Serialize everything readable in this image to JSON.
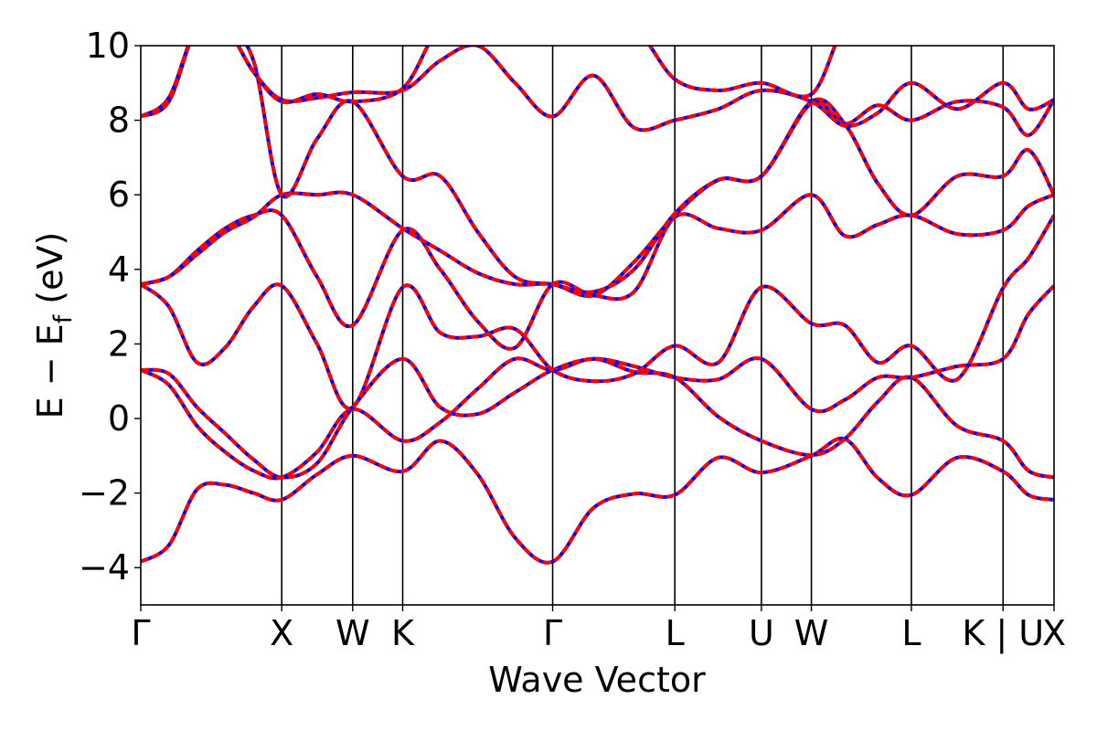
{
  "chart_data": {
    "type": "line",
    "title": "",
    "xlabel": "Wave Vector",
    "ylabel_main": "E − E",
    "ylabel_sub": "f",
    "ylabel_unit": " (eV)",
    "ylim": [
      -5,
      10
    ],
    "yticks": [
      -4,
      -2,
      0,
      2,
      4,
      6,
      8,
      10
    ],
    "ytick_labels": [
      "−4",
      "−2",
      "0",
      "2",
      "4",
      "6",
      "8",
      "10"
    ],
    "xlim": [
      0,
      3.745
    ],
    "kpoints": [
      {
        "label": "Γ",
        "x": 0.0
      },
      {
        "label": "X",
        "x": 0.578
      },
      {
        "label": "W",
        "x": 0.869
      },
      {
        "label": "K",
        "x": 1.074
      },
      {
        "label": "Γ",
        "x": 1.689
      },
      {
        "label": "L",
        "x": 2.19
      },
      {
        "label": "U",
        "x": 2.545
      },
      {
        "label": "W",
        "x": 2.75
      },
      {
        "label": "L",
        "x": 3.16
      },
      {
        "label": "K | U",
        "x": 3.536
      },
      {
        "label": "X",
        "x": 3.745
      }
    ],
    "series_style": [
      {
        "name": "",
        "color": "#ff0000",
        "dash": "solid"
      },
      {
        "name": "",
        "color": "#0000ff",
        "dash": "dashed"
      }
    ],
    "bands": [
      {
        "x": [
          0.0,
          0.115,
          0.231,
          0.346,
          0.462,
          0.578,
          0.723,
          0.869,
          1.074,
          1.228,
          1.382,
          1.535,
          1.689,
          1.856,
          2.023,
          2.19,
          2.368,
          2.545,
          2.75,
          2.887,
          3.023,
          3.16,
          3.348,
          3.536,
          3.64,
          3.745
        ],
        "y": [
          -3.84,
          -3.4,
          -1.9,
          -1.78,
          -2.0,
          -2.18,
          -1.5,
          -1.0,
          -1.42,
          -0.6,
          -1.5,
          -3.2,
          -3.84,
          -2.4,
          -2.02,
          -2.05,
          -1.05,
          -1.45,
          -1.0,
          -0.55,
          -1.6,
          -2.05,
          -1.05,
          -1.42,
          -2.05,
          -2.18
        ]
      },
      {
        "x": [
          0.0,
          0.115,
          0.231,
          0.346,
          0.462,
          0.578,
          0.723,
          0.869,
          1.074,
          1.228,
          1.382,
          1.535,
          1.689,
          1.856,
          2.023,
          2.19,
          2.368,
          2.545,
          2.75,
          2.887,
          3.023,
          3.16,
          3.348,
          3.536,
          3.64,
          3.745
        ],
        "y": [
          1.3,
          0.9,
          -0.2,
          -0.9,
          -1.4,
          -1.58,
          -0.9,
          0.25,
          -0.6,
          -0.1,
          0.8,
          1.6,
          1.3,
          1.6,
          1.25,
          1.1,
          0.05,
          -0.6,
          -0.98,
          -0.55,
          0.45,
          1.1,
          -0.2,
          -0.6,
          -1.4,
          -1.58
        ]
      },
      {
        "x": [
          0.0,
          0.115,
          0.231,
          0.346,
          0.462,
          0.578,
          0.723,
          0.869,
          1.074,
          1.228,
          1.382,
          1.535,
          1.689,
          1.856,
          2.023,
          2.19,
          2.368,
          2.545,
          2.75,
          2.887,
          3.023,
          3.16,
          3.348,
          3.536,
          3.64,
          3.745
        ],
        "y": [
          1.3,
          1.2,
          0.3,
          -0.4,
          -1.1,
          -1.58,
          -1.2,
          0.3,
          1.6,
          0.3,
          0.12,
          0.7,
          1.3,
          1.6,
          1.4,
          1.1,
          1.05,
          1.6,
          0.25,
          0.5,
          1.1,
          1.1,
          1.4,
          1.6,
          2.8,
          3.56
        ]
      },
      {
        "x": [
          0.0,
          0.115,
          0.231,
          0.346,
          0.462,
          0.578,
          0.723,
          0.869,
          1.074,
          1.228,
          1.382,
          1.535,
          1.689,
          1.856,
          2.023,
          2.19,
          2.368,
          2.545,
          2.75,
          2.887,
          3.023,
          3.16,
          3.348,
          3.536,
          3.64,
          3.745
        ],
        "y": [
          3.6,
          3.0,
          1.5,
          1.9,
          3.0,
          3.56,
          2.0,
          0.3,
          3.52,
          2.3,
          2.2,
          2.4,
          1.3,
          1.0,
          1.2,
          1.95,
          1.5,
          3.52,
          2.55,
          2.5,
          1.5,
          1.95,
          1.05,
          3.5,
          4.3,
          5.45
        ]
      },
      {
        "x": [
          0.0,
          0.115,
          0.231,
          0.346,
          0.462,
          0.578,
          0.723,
          0.869,
          1.074,
          1.228,
          1.382,
          1.535,
          1.689,
          1.856,
          2.023,
          2.19,
          2.368,
          2.545,
          2.75,
          2.887,
          3.023,
          3.16,
          3.348,
          3.536,
          3.64,
          3.745
        ],
        "y": [
          3.6,
          3.8,
          4.5,
          5.1,
          5.45,
          5.45,
          3.8,
          2.5,
          5.05,
          4.0,
          2.6,
          1.9,
          3.6,
          3.3,
          3.4,
          5.4,
          5.1,
          5.05,
          6.0,
          4.9,
          5.2,
          5.45,
          4.95,
          5.05,
          5.7,
          6.0
        ]
      },
      {
        "x": [
          0.0,
          0.115,
          0.231,
          0.346,
          0.462,
          0.578,
          0.723,
          0.869,
          1.074,
          1.228,
          1.382,
          1.535,
          1.689,
          1.856,
          2.023,
          2.19,
          2.368,
          2.545,
          2.75,
          2.887,
          3.023,
          3.16,
          3.348,
          3.536,
          3.64,
          3.745
        ],
        "y": [
          3.6,
          3.8,
          4.4,
          5.0,
          5.4,
          6.0,
          6.0,
          6.0,
          5.1,
          4.5,
          3.9,
          3.6,
          3.6,
          3.3,
          4.2,
          5.45,
          6.4,
          6.5,
          8.5,
          7.9,
          6.3,
          5.45,
          6.5,
          6.5,
          7.2,
          6.0
        ]
      },
      {
        "x": [
          0.0,
          0.115,
          0.231,
          0.346,
          0.462,
          0.578,
          0.723,
          0.869,
          1.074,
          1.228,
          1.382,
          1.535,
          1.689,
          1.856,
          2.023,
          2.19,
          2.368,
          2.545,
          2.75,
          2.887,
          3.023,
          3.16,
          3.348,
          3.536,
          3.64,
          3.745
        ],
        "y": [
          8.1,
          8.5,
          10.5,
          10.5,
          9.6,
          6.0,
          7.5,
          8.5,
          6.5,
          6.5,
          5.0,
          3.8,
          3.6,
          3.4,
          4.0,
          5.5,
          6.4,
          6.5,
          8.45,
          7.9,
          8.4,
          8.0,
          8.5,
          8.35,
          7.6,
          8.55
        ]
      },
      {
        "x": [
          0.0,
          0.115,
          0.231,
          0.346,
          0.462,
          0.578,
          0.723,
          0.869,
          1.074,
          1.228,
          1.382,
          1.535,
          1.689,
          1.856,
          2.023,
          2.19,
          2.368,
          2.545,
          2.75,
          2.887,
          3.023,
          3.16,
          3.348,
          3.536,
          3.64,
          3.745
        ],
        "y": [
          8.1,
          8.6,
          10.5,
          10.5,
          9.3,
          8.55,
          8.6,
          8.75,
          8.8,
          9.6,
          10.0,
          9.0,
          8.1,
          9.2,
          7.8,
          8.0,
          8.3,
          8.8,
          8.5,
          7.85,
          8.2,
          9.0,
          8.3,
          9.0,
          8.3,
          8.55
        ]
      },
      {
        "x": [
          0.0,
          0.115,
          0.231,
          0.346,
          0.462,
          0.578,
          0.723,
          0.869,
          1.074,
          1.228,
          1.382,
          1.535,
          1.689,
          1.856,
          2.023,
          2.19,
          2.368,
          2.545,
          2.75,
          2.887,
          3.023,
          3.16,
          3.348,
          3.536,
          3.64,
          3.745
        ],
        "y": [
          8.1,
          8.6,
          10.5,
          10.5,
          9.3,
          8.5,
          8.7,
          8.5,
          8.85,
          10.5,
          10.5,
          10.5,
          10.5,
          10.5,
          10.5,
          9.1,
          8.8,
          9.0,
          8.7,
          10.5,
          10.5,
          10.5,
          10.5,
          10.5,
          10.5,
          10.5
        ]
      }
    ]
  }
}
